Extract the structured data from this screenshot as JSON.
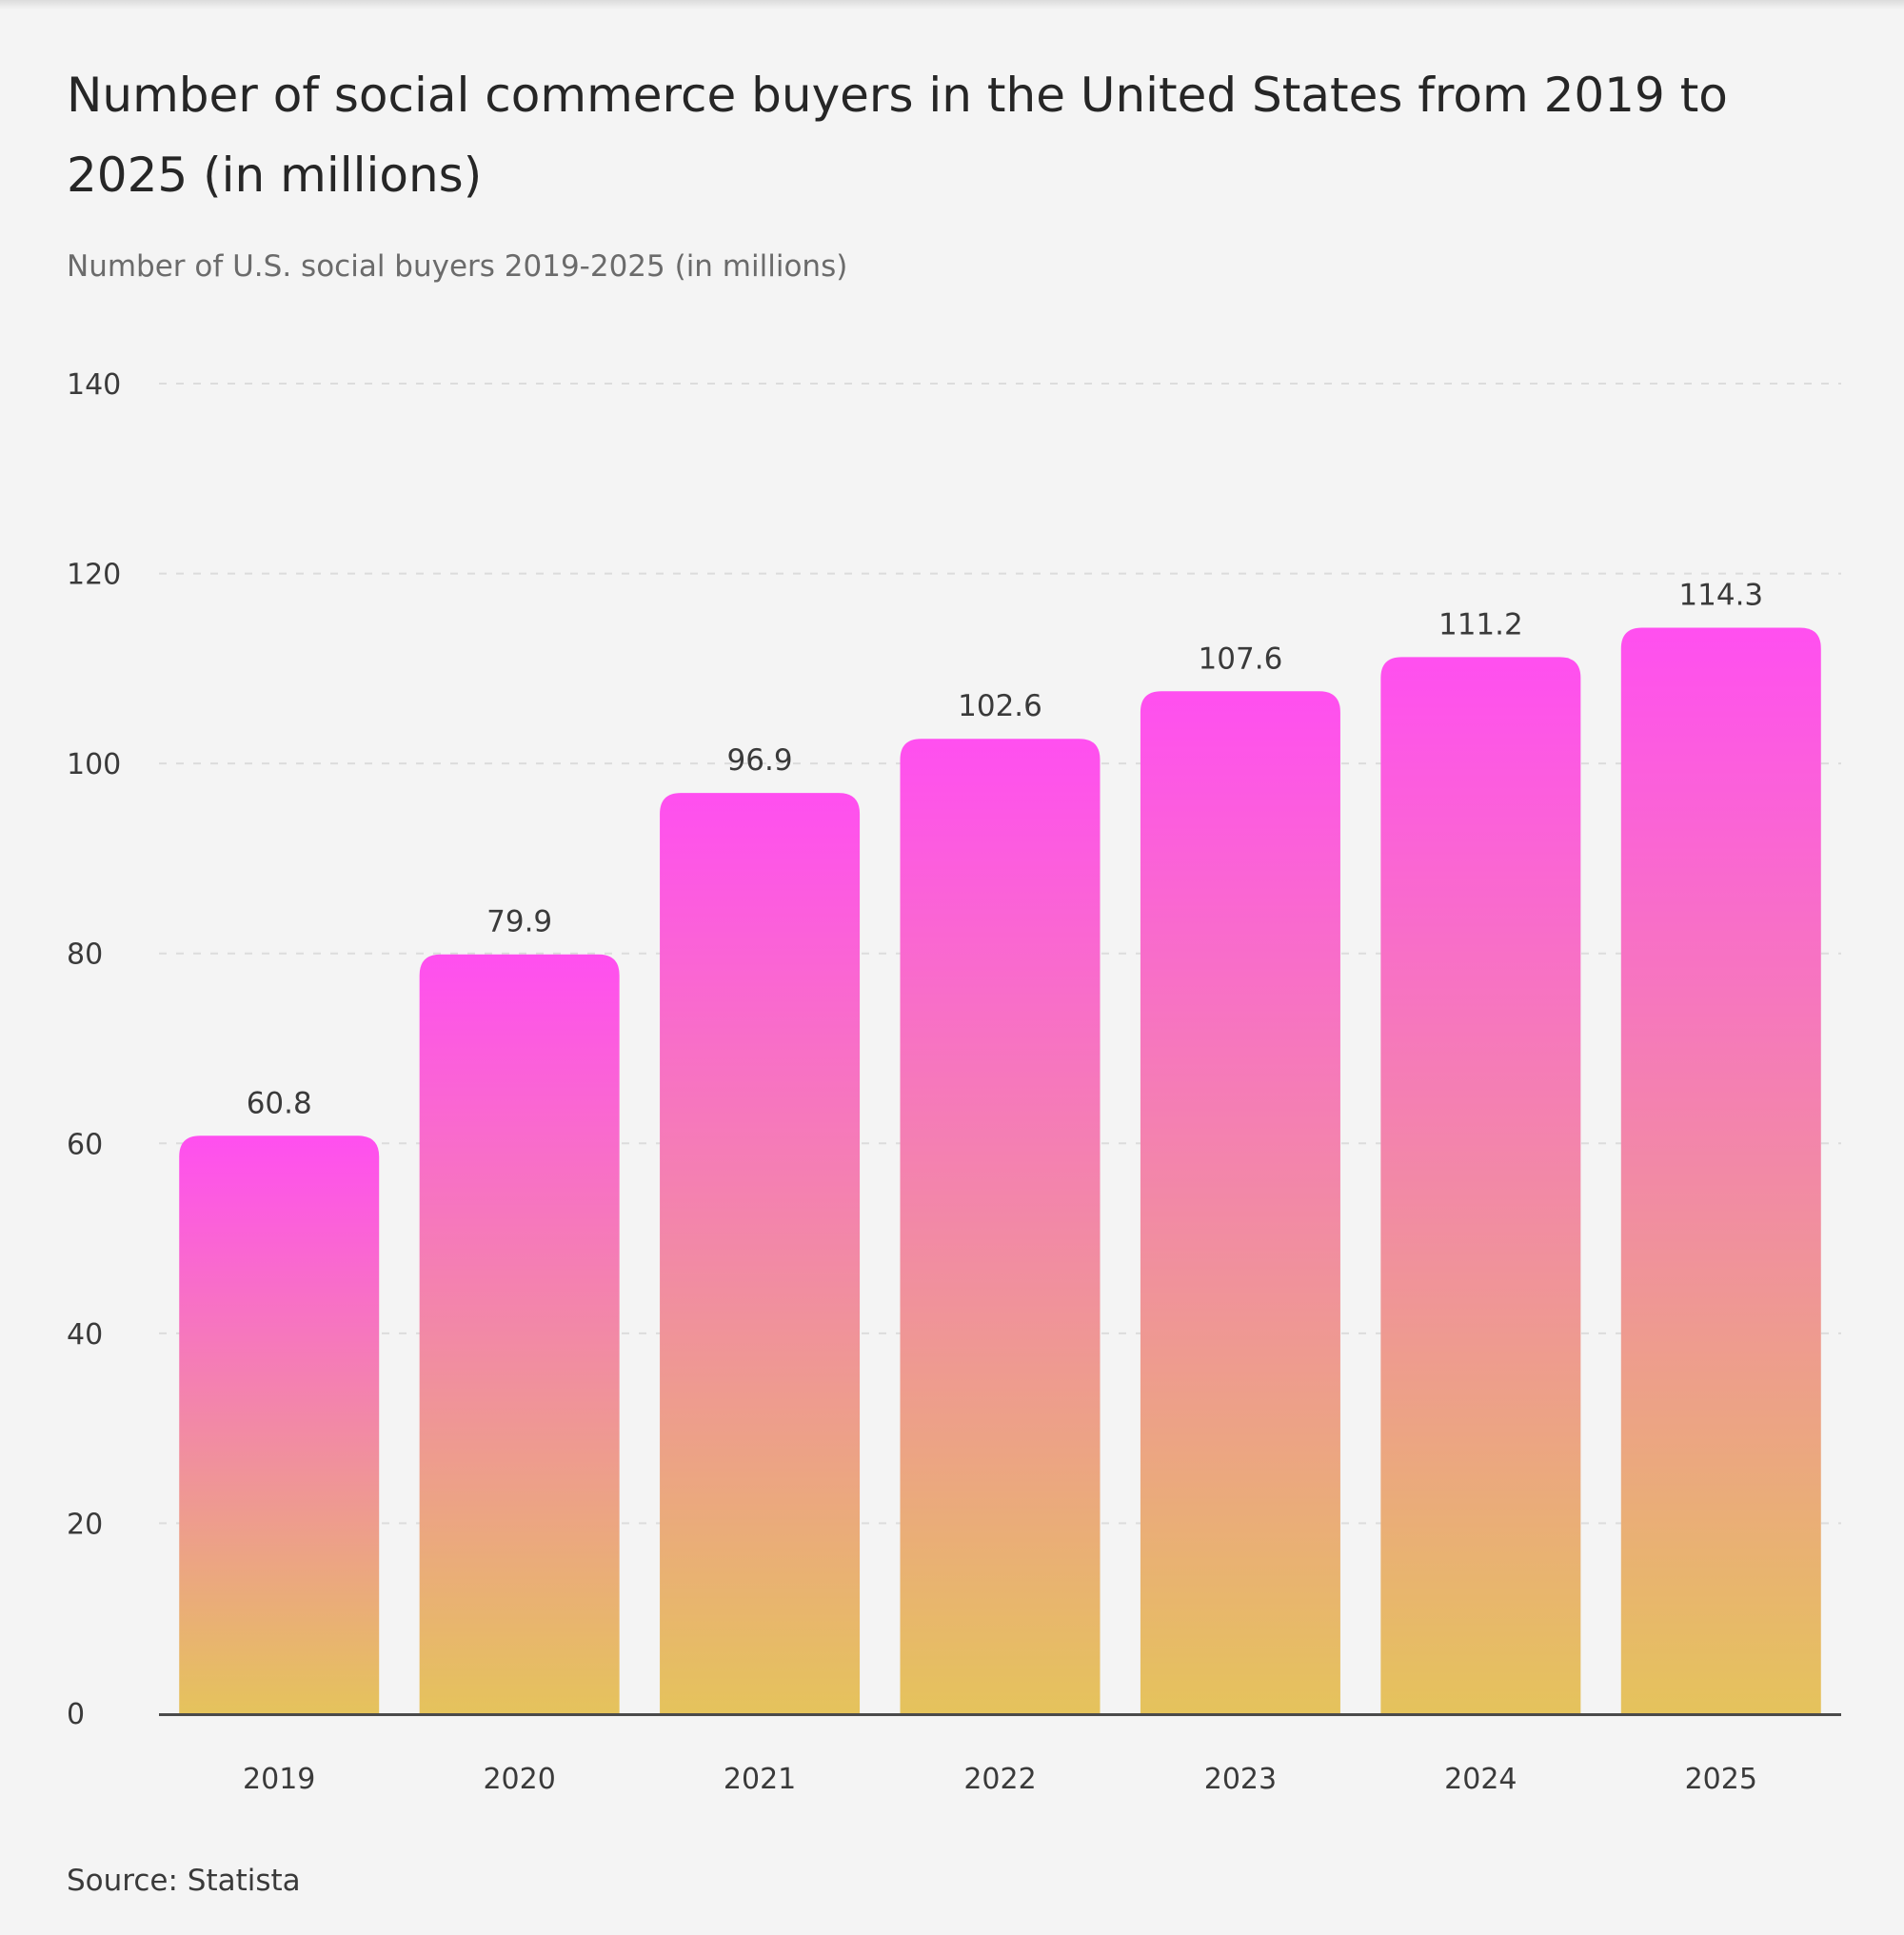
{
  "colors": {
    "background": "#f4f4f4",
    "bar_top": "#ff4ff0",
    "bar_bottom": "#e5c35c",
    "gridline": "#dcdcdc",
    "axis": "#4a4a4a"
  },
  "header": {
    "title": "Number of social commerce buyers in the United States from 2019 to 2025 (in millions)",
    "subtitle": "Number of U.S. social buyers 2019-2025  (in millions)"
  },
  "footer": {
    "source": "Source: Statista"
  },
  "chart_data": {
    "type": "bar",
    "title": "Number of social commerce buyers in the United States from 2019 to 2025 (in millions)",
    "subtitle": "Number of U.S. social buyers 2019-2025  (in millions)",
    "xlabel": "",
    "ylabel": "",
    "categories": [
      "2019",
      "2020",
      "2021",
      "2022",
      "2023",
      "2024",
      "2025"
    ],
    "values": [
      60.8,
      79.9,
      96.9,
      102.6,
      107.6,
      111.2,
      114.3
    ],
    "value_labels": [
      "60.8",
      "79.9",
      "96.9",
      "102.6",
      "107.6",
      "111.2",
      "114.3"
    ],
    "ylim": [
      0,
      140
    ],
    "yticks": [
      0,
      20,
      40,
      60,
      80,
      100,
      120,
      140
    ],
    "grid": true,
    "legend": "none"
  }
}
